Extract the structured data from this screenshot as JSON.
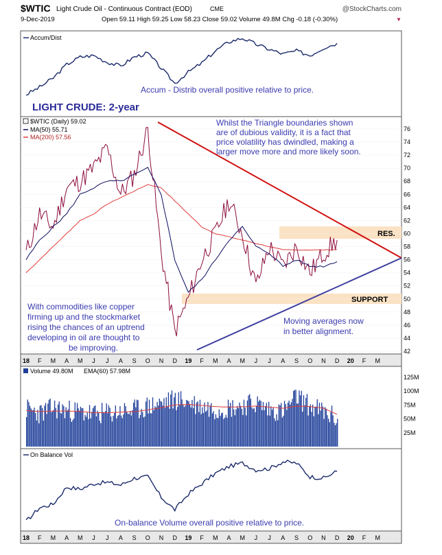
{
  "header": {
    "symbol": "$WTIC",
    "name": "Light Crude Oil - Continuous Contract (EOD)",
    "exchange": "CME",
    "watermark": "@StockCharts.com",
    "date": "9-Dec-2019",
    "ohlc_text": "Open 59.11  High 59.25  Low 58.23  Close 59.02  Volume 49.8M  Chg -0.18 (-0.30%)",
    "chg_marker": "▼"
  },
  "annotations": {
    "accum_note": "Accum - Distrib overall positive relative to price.",
    "main_title": "LIGHT CRUDE: 2-year",
    "triangle_note": [
      "Whilst the Triangle boundaries shown",
      "are of dubious validity, it is a fact that",
      "price volatility has dwindled, making a",
      "larger move more and more likely soon."
    ],
    "res_label": "RES.",
    "support_label": "SUPPORT",
    "commod_note": [
      "With commodities like copper",
      "firming up and the stockmarket",
      "rising the chances of an uptrend",
      "developing in oil are thought to",
      "be improving."
    ],
    "ma_note": [
      "Moving averages now",
      "in better alignment."
    ],
    "obv_note": "On-balance Volume overall positive relative to price."
  },
  "colors": {
    "price": "#8b0a3c",
    "ma50": "#0a0a60",
    "ma200": "#e03a3a",
    "trendline": "#d01010",
    "support_line": "#4040a0",
    "band": "#fbe2c4",
    "text_blue": "#3a3ab0",
    "volume": "#1f3f99",
    "panel_line": "#1a2a6a"
  },
  "chart_data": [
    {
      "type": "line",
      "title": "Accum/Dist",
      "legend": [
        {
          "name": "Accum/Dist"
        }
      ],
      "x": [
        "2018-01",
        "2018-02",
        "2018-03",
        "2018-04",
        "2018-05",
        "2018-06",
        "2018-07",
        "2018-08",
        "2018-09",
        "2018-10",
        "2018-11",
        "2018-12",
        "2019-01",
        "2019-02",
        "2019-03",
        "2019-04",
        "2019-05",
        "2019-06",
        "2019-07",
        "2019-08",
        "2019-09",
        "2019-10",
        "2019-11",
        "2019-12"
      ],
      "values": [
        20,
        30,
        42,
        60,
        70,
        72,
        63,
        58,
        70,
        75,
        55,
        35,
        50,
        62,
        78,
        90,
        95,
        87,
        80,
        74,
        78,
        72,
        82,
        88
      ]
    },
    {
      "type": "line",
      "legend_position": "top-left",
      "ylim": [
        41,
        77
      ],
      "y_ticks": [
        42,
        44,
        46,
        48,
        50,
        52,
        54,
        56,
        58,
        60,
        62,
        64,
        66,
        68,
        70,
        72,
        74,
        76
      ],
      "x_tick_labels": [
        "18",
        "F",
        "M",
        "A",
        "M",
        "J",
        "J",
        "A",
        "S",
        "O",
        "N",
        "D",
        "19",
        "F",
        "M",
        "A",
        "M",
        "J",
        "J",
        "A",
        "S",
        "O",
        "N",
        "D",
        "20",
        "F",
        "M"
      ],
      "series": [
        {
          "name": "$WTIC (Daily) 59.02",
          "x": [
            "2018-01",
            "2018-02",
            "2018-03",
            "2018-04",
            "2018-05",
            "2018-06",
            "2018-07",
            "2018-08",
            "2018-09",
            "2018-10",
            "2018-11",
            "2018-12",
            "2019-01",
            "2019-02",
            "2019-03",
            "2019-04",
            "2019-05",
            "2019-06",
            "2019-07",
            "2019-08",
            "2019-09",
            "2019-10",
            "2019-11",
            "2019-12"
          ],
          "values": [
            57,
            63,
            61,
            67,
            68,
            70,
            73,
            66,
            69,
            76,
            57,
            45,
            50,
            56,
            60,
            65,
            60,
            52,
            58,
            55,
            58,
            54,
            57,
            59
          ]
        },
        {
          "name": "MA(50) 55.71",
          "x": [
            "2018-01",
            "2018-02",
            "2018-03",
            "2018-04",
            "2018-05",
            "2018-06",
            "2018-07",
            "2018-08",
            "2018-09",
            "2018-10",
            "2018-11",
            "2018-12",
            "2019-01",
            "2019-02",
            "2019-03",
            "2019-04",
            "2019-05",
            "2019-06",
            "2019-07",
            "2019-08",
            "2019-09",
            "2019-10",
            "2019-11",
            "2019-12"
          ],
          "values": [
            56,
            59,
            61,
            63,
            66,
            67,
            68,
            68,
            69,
            70,
            66,
            56,
            51,
            53,
            56,
            59,
            61,
            58,
            57,
            55,
            56,
            55,
            55,
            55.7
          ]
        },
        {
          "name": "MA(200) 57.56",
          "x": [
            "2018-01",
            "2018-02",
            "2018-03",
            "2018-04",
            "2018-05",
            "2018-06",
            "2018-07",
            "2018-08",
            "2018-09",
            "2018-10",
            "2018-11",
            "2018-12",
            "2019-01",
            "2019-02",
            "2019-03",
            "2019-04",
            "2019-05",
            "2019-06",
            "2019-07",
            "2019-08",
            "2019-09",
            "2019-10",
            "2019-11",
            "2019-12"
          ],
          "values": [
            54,
            56,
            58,
            60,
            62,
            63,
            64.5,
            65.5,
            66.5,
            67.5,
            67,
            65,
            63,
            61,
            60,
            59.5,
            59,
            58.5,
            58,
            57.5,
            57.5,
            57.5,
            57.5,
            57.56
          ]
        }
      ]
    },
    {
      "type": "bar",
      "legend": [
        {
          "name": "Volume 49.80M"
        },
        {
          "name": "EMA(60) 57.98M"
        }
      ],
      "y_ticks": [
        25,
        50,
        75,
        100,
        125
      ],
      "y_tick_labels": [
        "25M",
        "50M",
        "75M",
        "100M",
        "125M"
      ],
      "ylim": [
        0,
        140
      ],
      "x": [
        "2018-01",
        "2018-02",
        "2018-03",
        "2018-04",
        "2018-05",
        "2018-06",
        "2018-07",
        "2018-08",
        "2018-09",
        "2018-10",
        "2018-11",
        "2018-12",
        "2019-01",
        "2019-02",
        "2019-03",
        "2019-04",
        "2019-05",
        "2019-06",
        "2019-07",
        "2019-08",
        "2019-09",
        "2019-10",
        "2019-11",
        "2019-12"
      ],
      "values": [
        68,
        60,
        70,
        65,
        62,
        58,
        60,
        63,
        65,
        72,
        78,
        85,
        80,
        72,
        68,
        70,
        75,
        78,
        66,
        64,
        90,
        72,
        62,
        50
      ],
      "ema": [
        65,
        63,
        64,
        64,
        63,
        61,
        61,
        62,
        63,
        66,
        70,
        75,
        76,
        74,
        72,
        71,
        72,
        73,
        71,
        69,
        73,
        72,
        69,
        58
      ]
    },
    {
      "type": "line",
      "title": "On Balance Vol",
      "legend": [
        {
          "name": "On Balance Vol"
        }
      ],
      "x": [
        "2018-01",
        "2018-02",
        "2018-03",
        "2018-04",
        "2018-05",
        "2018-06",
        "2018-07",
        "2018-08",
        "2018-09",
        "2018-10",
        "2018-11",
        "2018-12",
        "2019-01",
        "2019-02",
        "2019-03",
        "2019-04",
        "2019-05",
        "2019-06",
        "2019-07",
        "2019-08",
        "2019-09",
        "2019-10",
        "2019-11",
        "2019-12"
      ],
      "values": [
        5,
        25,
        30,
        55,
        52,
        60,
        62,
        58,
        68,
        70,
        40,
        22,
        45,
        60,
        75,
        85,
        90,
        80,
        82,
        92,
        90,
        70,
        68,
        78
      ],
      "x_tick_labels": [
        "18",
        "F",
        "M",
        "A",
        "M",
        "J",
        "J",
        "A",
        "S",
        "O",
        "N",
        "D",
        "19",
        "F",
        "M",
        "A",
        "M",
        "J",
        "J",
        "A",
        "S",
        "O",
        "N",
        "D",
        "20",
        "F",
        "M"
      ]
    }
  ]
}
